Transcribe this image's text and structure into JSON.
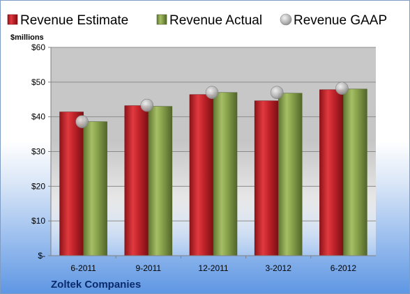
{
  "chart_data": {
    "type": "bar",
    "ylabel": "$millions",
    "footer": "Zoltek Companies",
    "categories": [
      "6-2011",
      "9-2011",
      "12-2011",
      "3-2012",
      "6-2012"
    ],
    "ylim": [
      0,
      60
    ],
    "yticks": [
      0,
      10,
      20,
      30,
      40,
      50,
      60
    ],
    "ytick_labels": [
      "$-",
      "$10",
      "$20",
      "$30",
      "$40",
      "$50",
      "$60"
    ],
    "grid": true,
    "legend_position": "top",
    "series": [
      {
        "name": "Revenue Estimate",
        "kind": "bar",
        "color": "#c0232a",
        "values": [
          41.4,
          43.2,
          46.4,
          44.6,
          47.8
        ]
      },
      {
        "name": "Revenue Actual",
        "kind": "bar",
        "color": "#86a04a",
        "values": [
          38.6,
          43.0,
          47.0,
          46.8,
          48.0
        ]
      },
      {
        "name": "Revenue GAAP",
        "kind": "marker",
        "color": "#b9b9b9",
        "values": [
          38.6,
          43.3,
          47.0,
          47.0,
          48.2
        ]
      }
    ]
  }
}
